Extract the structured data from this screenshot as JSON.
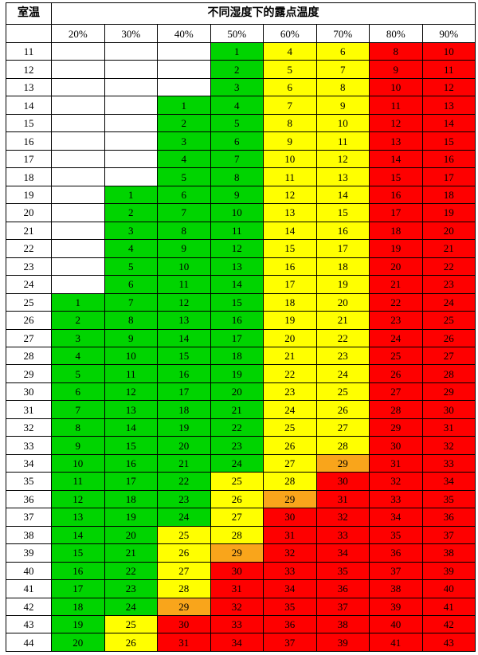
{
  "chart_data": {
    "type": "heatmap",
    "title": "不同湿度下的露点温度",
    "row_header_label": "室温",
    "columns": [
      "20%",
      "30%",
      "40%",
      "50%",
      "60%",
      "70%",
      "80%",
      "90%"
    ],
    "color_map": {
      "w": "#ffffff",
      "g": "#00d400",
      "y": "#ffff00",
      "o": "#f9a51b",
      "r": "#fe0000"
    },
    "legend": "none",
    "grid": "on",
    "rows": [
      {
        "temp": 11,
        "values": [
          null,
          null,
          null,
          1,
          4,
          6,
          8,
          10
        ],
        "colors": [
          "w",
          "w",
          "w",
          "g",
          "y",
          "y",
          "r",
          "r"
        ]
      },
      {
        "temp": 12,
        "values": [
          null,
          null,
          null,
          2,
          5,
          7,
          9,
          11
        ],
        "colors": [
          "w",
          "w",
          "w",
          "g",
          "y",
          "y",
          "r",
          "r"
        ]
      },
      {
        "temp": 13,
        "values": [
          null,
          null,
          null,
          3,
          6,
          8,
          10,
          12
        ],
        "colors": [
          "w",
          "w",
          "w",
          "g",
          "y",
          "y",
          "r",
          "r"
        ]
      },
      {
        "temp": 14,
        "values": [
          null,
          null,
          1,
          4,
          7,
          9,
          11,
          13
        ],
        "colors": [
          "w",
          "w",
          "g",
          "g",
          "y",
          "y",
          "r",
          "r"
        ]
      },
      {
        "temp": 15,
        "values": [
          null,
          null,
          2,
          5,
          8,
          10,
          12,
          14
        ],
        "colors": [
          "w",
          "w",
          "g",
          "g",
          "y",
          "y",
          "r",
          "r"
        ]
      },
      {
        "temp": 16,
        "values": [
          null,
          null,
          3,
          6,
          9,
          11,
          13,
          15
        ],
        "colors": [
          "w",
          "w",
          "g",
          "g",
          "y",
          "y",
          "r",
          "r"
        ]
      },
      {
        "temp": 17,
        "values": [
          null,
          null,
          4,
          7,
          10,
          12,
          14,
          16
        ],
        "colors": [
          "w",
          "w",
          "g",
          "g",
          "y",
          "y",
          "r",
          "r"
        ]
      },
      {
        "temp": 18,
        "values": [
          null,
          null,
          5,
          8,
          11,
          13,
          15,
          17
        ],
        "colors": [
          "w",
          "w",
          "g",
          "g",
          "y",
          "y",
          "r",
          "r"
        ]
      },
      {
        "temp": 19,
        "values": [
          null,
          1,
          6,
          9,
          12,
          14,
          16,
          18
        ],
        "colors": [
          "w",
          "g",
          "g",
          "g",
          "y",
          "y",
          "r",
          "r"
        ]
      },
      {
        "temp": 20,
        "values": [
          null,
          2,
          7,
          10,
          13,
          15,
          17,
          19
        ],
        "colors": [
          "w",
          "g",
          "g",
          "g",
          "y",
          "y",
          "r",
          "r"
        ]
      },
      {
        "temp": 21,
        "values": [
          null,
          3,
          8,
          11,
          14,
          16,
          18,
          20
        ],
        "colors": [
          "w",
          "g",
          "g",
          "g",
          "y",
          "y",
          "r",
          "r"
        ]
      },
      {
        "temp": 22,
        "values": [
          null,
          4,
          9,
          12,
          15,
          17,
          19,
          21
        ],
        "colors": [
          "w",
          "g",
          "g",
          "g",
          "y",
          "y",
          "r",
          "r"
        ]
      },
      {
        "temp": 23,
        "values": [
          null,
          5,
          10,
          13,
          16,
          18,
          20,
          22
        ],
        "colors": [
          "w",
          "g",
          "g",
          "g",
          "y",
          "y",
          "r",
          "r"
        ]
      },
      {
        "temp": 24,
        "values": [
          null,
          6,
          11,
          14,
          17,
          19,
          21,
          23
        ],
        "colors": [
          "w",
          "g",
          "g",
          "g",
          "y",
          "y",
          "r",
          "r"
        ]
      },
      {
        "temp": 25,
        "values": [
          1,
          7,
          12,
          15,
          18,
          20,
          22,
          24
        ],
        "colors": [
          "g",
          "g",
          "g",
          "g",
          "y",
          "y",
          "r",
          "r"
        ]
      },
      {
        "temp": 26,
        "values": [
          2,
          8,
          13,
          16,
          19,
          21,
          23,
          25
        ],
        "colors": [
          "g",
          "g",
          "g",
          "g",
          "y",
          "y",
          "r",
          "r"
        ]
      },
      {
        "temp": 27,
        "values": [
          3,
          9,
          14,
          17,
          20,
          22,
          24,
          26
        ],
        "colors": [
          "g",
          "g",
          "g",
          "g",
          "y",
          "y",
          "r",
          "r"
        ]
      },
      {
        "temp": 28,
        "values": [
          4,
          10,
          15,
          18,
          21,
          23,
          25,
          27
        ],
        "colors": [
          "g",
          "g",
          "g",
          "g",
          "y",
          "y",
          "r",
          "r"
        ]
      },
      {
        "temp": 29,
        "values": [
          5,
          11,
          16,
          19,
          22,
          24,
          26,
          28
        ],
        "colors": [
          "g",
          "g",
          "g",
          "g",
          "y",
          "y",
          "r",
          "r"
        ]
      },
      {
        "temp": 30,
        "values": [
          6,
          12,
          17,
          20,
          23,
          25,
          27,
          29
        ],
        "colors": [
          "g",
          "g",
          "g",
          "g",
          "y",
          "y",
          "r",
          "r"
        ]
      },
      {
        "temp": 31,
        "values": [
          7,
          13,
          18,
          21,
          24,
          26,
          28,
          30
        ],
        "colors": [
          "g",
          "g",
          "g",
          "g",
          "y",
          "y",
          "r",
          "r"
        ]
      },
      {
        "temp": 32,
        "values": [
          8,
          14,
          19,
          22,
          25,
          27,
          29,
          31
        ],
        "colors": [
          "g",
          "g",
          "g",
          "g",
          "y",
          "y",
          "r",
          "r"
        ]
      },
      {
        "temp": 33,
        "values": [
          9,
          15,
          20,
          23,
          26,
          28,
          30,
          32
        ],
        "colors": [
          "g",
          "g",
          "g",
          "g",
          "y",
          "y",
          "r",
          "r"
        ]
      },
      {
        "temp": 34,
        "values": [
          10,
          16,
          21,
          24,
          27,
          29,
          31,
          33
        ],
        "colors": [
          "g",
          "g",
          "g",
          "g",
          "y",
          "o",
          "r",
          "r"
        ]
      },
      {
        "temp": 35,
        "values": [
          11,
          17,
          22,
          25,
          28,
          30,
          32,
          34
        ],
        "colors": [
          "g",
          "g",
          "g",
          "y",
          "y",
          "r",
          "r",
          "r"
        ]
      },
      {
        "temp": 36,
        "values": [
          12,
          18,
          23,
          26,
          29,
          31,
          33,
          35
        ],
        "colors": [
          "g",
          "g",
          "g",
          "y",
          "o",
          "r",
          "r",
          "r"
        ]
      },
      {
        "temp": 37,
        "values": [
          13,
          19,
          24,
          27,
          30,
          32,
          34,
          36
        ],
        "colors": [
          "g",
          "g",
          "g",
          "y",
          "r",
          "r",
          "r",
          "r"
        ]
      },
      {
        "temp": 38,
        "values": [
          14,
          20,
          25,
          28,
          31,
          33,
          35,
          37
        ],
        "colors": [
          "g",
          "g",
          "y",
          "y",
          "r",
          "r",
          "r",
          "r"
        ]
      },
      {
        "temp": 39,
        "values": [
          15,
          21,
          26,
          29,
          32,
          34,
          36,
          38
        ],
        "colors": [
          "g",
          "g",
          "y",
          "o",
          "r",
          "r",
          "r",
          "r"
        ]
      },
      {
        "temp": 40,
        "values": [
          16,
          22,
          27,
          30,
          33,
          35,
          37,
          39
        ],
        "colors": [
          "g",
          "g",
          "y",
          "r",
          "r",
          "r",
          "r",
          "r"
        ]
      },
      {
        "temp": 41,
        "values": [
          17,
          23,
          28,
          31,
          34,
          36,
          38,
          40
        ],
        "colors": [
          "g",
          "g",
          "y",
          "r",
          "r",
          "r",
          "r",
          "r"
        ]
      },
      {
        "temp": 42,
        "values": [
          18,
          24,
          29,
          32,
          35,
          37,
          39,
          41
        ],
        "colors": [
          "g",
          "g",
          "o",
          "r",
          "r",
          "r",
          "r",
          "r"
        ]
      },
      {
        "temp": 43,
        "values": [
          19,
          25,
          30,
          33,
          36,
          38,
          40,
          42
        ],
        "colors": [
          "g",
          "y",
          "r",
          "r",
          "r",
          "r",
          "r",
          "r"
        ]
      },
      {
        "temp": 44,
        "values": [
          20,
          26,
          31,
          34,
          37,
          39,
          41,
          43
        ],
        "colors": [
          "g",
          "y",
          "r",
          "r",
          "r",
          "r",
          "r",
          "r"
        ]
      }
    ]
  }
}
